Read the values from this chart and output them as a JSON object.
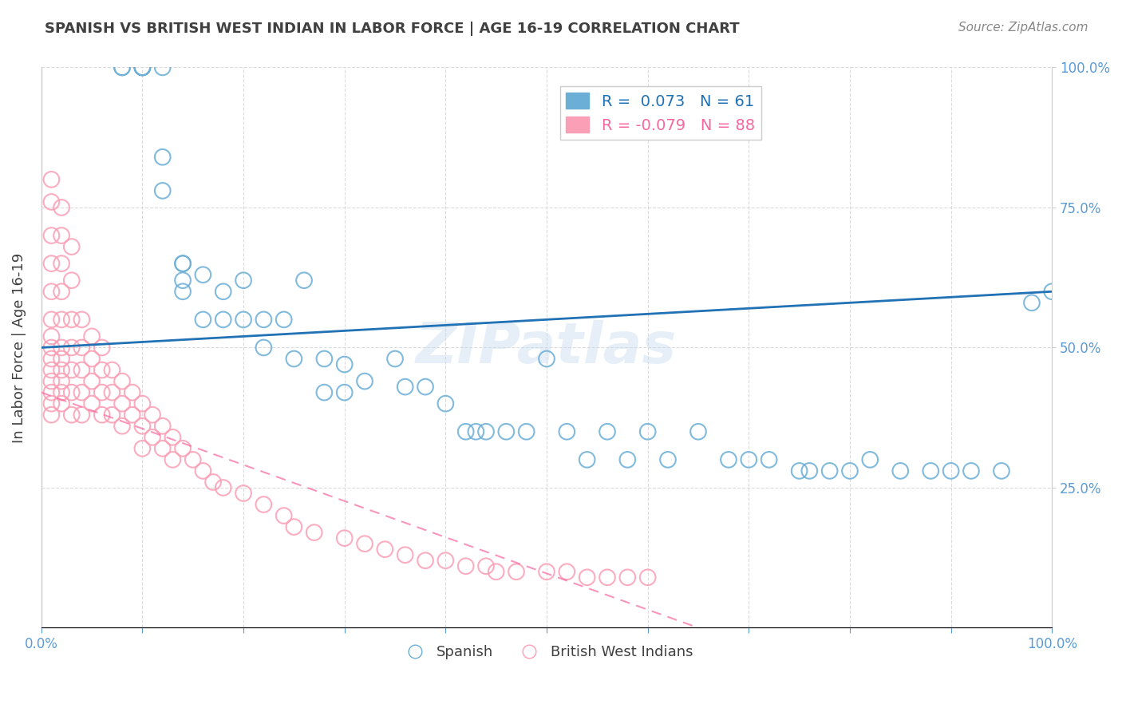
{
  "title": "SPANISH VS BRITISH WEST INDIAN IN LABOR FORCE | AGE 16-19 CORRELATION CHART",
  "source_text": "Source: ZipAtlas.com",
  "ylabel": "In Labor Force | Age 16-19",
  "xlabel": "",
  "watermark": "ZIPatlas",
  "spanish_R": 0.073,
  "spanish_N": 61,
  "bwi_R": -0.079,
  "bwi_N": 88,
  "xlim": [
    0.0,
    1.0
  ],
  "ylim": [
    0.0,
    1.0
  ],
  "xtick_labels": [
    "0.0%",
    "100.0%"
  ],
  "ytick_labels_right": [
    "25.0%",
    "50.0%",
    "75.0%",
    "100.0%"
  ],
  "blue_color": "#6baed6",
  "pink_color": "#fa9fb5",
  "blue_line_color": "#2171b5",
  "pink_line_color": "#f768a1",
  "grid_color": "#cccccc",
  "background_color": "#ffffff",
  "title_color": "#404040",
  "source_color": "#888888",
  "spanish_x": [
    0.08,
    0.08,
    0.1,
    0.1,
    0.1,
    0.1,
    0.12,
    0.12,
    0.12,
    0.14,
    0.14,
    0.14,
    0.14,
    0.16,
    0.16,
    0.18,
    0.18,
    0.2,
    0.2,
    0.22,
    0.22,
    0.24,
    0.25,
    0.26,
    0.28,
    0.28,
    0.3,
    0.3,
    0.32,
    0.35,
    0.36,
    0.38,
    0.4,
    0.42,
    0.43,
    0.44,
    0.46,
    0.48,
    0.5,
    0.52,
    0.54,
    0.56,
    0.58,
    0.6,
    0.62,
    0.65,
    0.68,
    0.7,
    0.72,
    0.75,
    0.76,
    0.78,
    0.8,
    0.82,
    0.85,
    0.88,
    0.9,
    0.92,
    0.95,
    0.98,
    1.0
  ],
  "spanish_y": [
    1.0,
    1.0,
    1.0,
    1.0,
    1.0,
    1.0,
    1.0,
    0.84,
    0.78,
    0.65,
    0.65,
    0.62,
    0.6,
    0.63,
    0.55,
    0.6,
    0.55,
    0.62,
    0.55,
    0.55,
    0.5,
    0.55,
    0.48,
    0.62,
    0.48,
    0.42,
    0.47,
    0.42,
    0.44,
    0.48,
    0.43,
    0.43,
    0.4,
    0.35,
    0.35,
    0.35,
    0.35,
    0.35,
    0.48,
    0.35,
    0.3,
    0.35,
    0.3,
    0.35,
    0.3,
    0.35,
    0.3,
    0.3,
    0.3,
    0.28,
    0.28,
    0.28,
    0.28,
    0.3,
    0.28,
    0.28,
    0.28,
    0.28,
    0.28,
    0.58,
    0.6
  ],
  "bwi_x": [
    0.01,
    0.01,
    0.01,
    0.01,
    0.01,
    0.01,
    0.01,
    0.01,
    0.01,
    0.01,
    0.01,
    0.01,
    0.01,
    0.01,
    0.02,
    0.02,
    0.02,
    0.02,
    0.02,
    0.02,
    0.02,
    0.02,
    0.02,
    0.02,
    0.02,
    0.03,
    0.03,
    0.03,
    0.03,
    0.03,
    0.03,
    0.03,
    0.04,
    0.04,
    0.04,
    0.04,
    0.04,
    0.05,
    0.05,
    0.05,
    0.05,
    0.06,
    0.06,
    0.06,
    0.06,
    0.07,
    0.07,
    0.07,
    0.08,
    0.08,
    0.08,
    0.09,
    0.09,
    0.1,
    0.1,
    0.1,
    0.11,
    0.11,
    0.12,
    0.12,
    0.13,
    0.13,
    0.14,
    0.15,
    0.16,
    0.17,
    0.18,
    0.2,
    0.22,
    0.24,
    0.25,
    0.27,
    0.3,
    0.32,
    0.34,
    0.36,
    0.38,
    0.4,
    0.42,
    0.44,
    0.45,
    0.47,
    0.5,
    0.52,
    0.54,
    0.56,
    0.58,
    0.6
  ],
  "bwi_y": [
    0.8,
    0.76,
    0.7,
    0.65,
    0.6,
    0.55,
    0.52,
    0.5,
    0.48,
    0.46,
    0.44,
    0.42,
    0.4,
    0.38,
    0.75,
    0.7,
    0.65,
    0.6,
    0.55,
    0.5,
    0.48,
    0.46,
    0.44,
    0.42,
    0.4,
    0.68,
    0.62,
    0.55,
    0.5,
    0.46,
    0.42,
    0.38,
    0.55,
    0.5,
    0.46,
    0.42,
    0.38,
    0.52,
    0.48,
    0.44,
    0.4,
    0.5,
    0.46,
    0.42,
    0.38,
    0.46,
    0.42,
    0.38,
    0.44,
    0.4,
    0.36,
    0.42,
    0.38,
    0.4,
    0.36,
    0.32,
    0.38,
    0.34,
    0.36,
    0.32,
    0.34,
    0.3,
    0.32,
    0.3,
    0.28,
    0.26,
    0.25,
    0.24,
    0.22,
    0.2,
    0.18,
    0.17,
    0.16,
    0.15,
    0.14,
    0.13,
    0.12,
    0.12,
    0.11,
    0.11,
    0.1,
    0.1,
    0.1,
    0.1,
    0.09,
    0.09,
    0.09,
    0.09
  ]
}
